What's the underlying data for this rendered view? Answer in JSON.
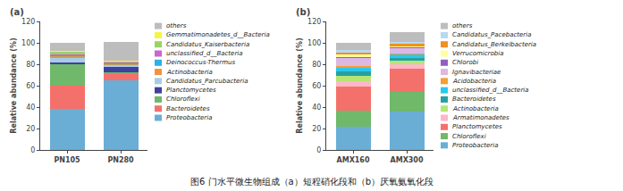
{
  "chart_data": [
    {
      "type": "bar",
      "stacked": true,
      "title": "(a)",
      "categories": [
        "PN105",
        "PN280"
      ],
      "series": [
        {
          "name": "Proteobacteria",
          "color": "#6AAED6",
          "values": [
            38,
            65
          ]
        },
        {
          "name": "Bacteroidetes",
          "color": "#F4716B",
          "values": [
            22,
            7
          ]
        },
        {
          "name": "Chloroflexi",
          "color": "#70B86A",
          "values": [
            20,
            0.5
          ]
        },
        {
          "name": "Planctomycetes",
          "color": "#4040A0",
          "values": [
            2,
            5
          ]
        },
        {
          "name": "Candidatus_Parcubacteria",
          "color": "#A8CCE8",
          "values": [
            4,
            1.5
          ]
        },
        {
          "name": "Actinobacteria",
          "color": "#F0943A",
          "values": [
            1.5,
            1
          ]
        },
        {
          "name": "Deinococcus-Thermus",
          "color": "#29B3E8",
          "values": [
            1,
            1
          ]
        },
        {
          "name": "unclassified_d__Bacteria",
          "color": "#CC66CC",
          "values": [
            1,
            0.5
          ]
        },
        {
          "name": "Candidatus_Kaiserbacteria",
          "color": "#98D464",
          "values": [
            2,
            1
          ]
        },
        {
          "name": "Gemmatimonadetes_d__Bacteria",
          "color": "#F5F542",
          "values": [
            1,
            1
          ]
        },
        {
          "name": "others",
          "color": "#BDBDBD",
          "values": [
            7.5,
            17.5
          ]
        }
      ],
      "ylabel": "Relative abundance (%)",
      "ylim": [
        0,
        120
      ],
      "yticks": [
        0,
        20,
        40,
        60,
        80,
        100,
        120
      ],
      "grid": false
    },
    {
      "type": "bar",
      "stacked": true,
      "title": "(b)",
      "categories": [
        "AMX160",
        "AMX300"
      ],
      "series": [
        {
          "name": "Proteobacteria",
          "color": "#6AAED6",
          "values": [
            22,
            36
          ]
        },
        {
          "name": "Chloroflexi",
          "color": "#70B86A",
          "values": [
            15,
            18
          ]
        },
        {
          "name": "Planctomycetes",
          "color": "#F4716B",
          "values": [
            22,
            22
          ]
        },
        {
          "name": "Armatimonadetes",
          "color": "#FFB6C8",
          "values": [
            5,
            4
          ]
        },
        {
          "name": "Actinobacteria",
          "color": "#B5E675",
          "values": [
            5,
            3
          ]
        },
        {
          "name": "Bacteroidetes",
          "color": "#29A0A0",
          "values": [
            4,
            3
          ]
        },
        {
          "name": "unclassified_d__Bacteria",
          "color": "#29C8F0",
          "values": [
            4,
            3
          ]
        },
        {
          "name": "Acidobacteria",
          "color": "#F4A030",
          "values": [
            1,
            1
          ]
        },
        {
          "name": "Ignavibacteriae",
          "color": "#DDB8E0",
          "values": [
            8,
            5
          ]
        },
        {
          "name": "Chlorobi",
          "color": "#9060C0",
          "values": [
            1,
            1
          ]
        },
        {
          "name": "Verrucomicrobia",
          "color": "#FFFFA0",
          "values": [
            2,
            1
          ]
        },
        {
          "name": "Candidatus_Berkelbacteria",
          "color": "#F09020",
          "values": [
            2,
            2
          ]
        },
        {
          "name": "Candidatus_Pacebacteria",
          "color": "#B8D8F0",
          "values": [
            2,
            2
          ]
        },
        {
          "name": "others",
          "color": "#BDBDBD",
          "values": [
            7,
            9
          ]
        }
      ],
      "ylabel": "Relative abundance (%)",
      "ylim": [
        0,
        120
      ],
      "yticks": [
        0,
        20,
        40,
        60,
        80,
        100,
        120
      ],
      "grid": false
    }
  ],
  "caption": "图6 门水平微生物组成（a）短程硝化段和（b）厌氧氨氧化段"
}
